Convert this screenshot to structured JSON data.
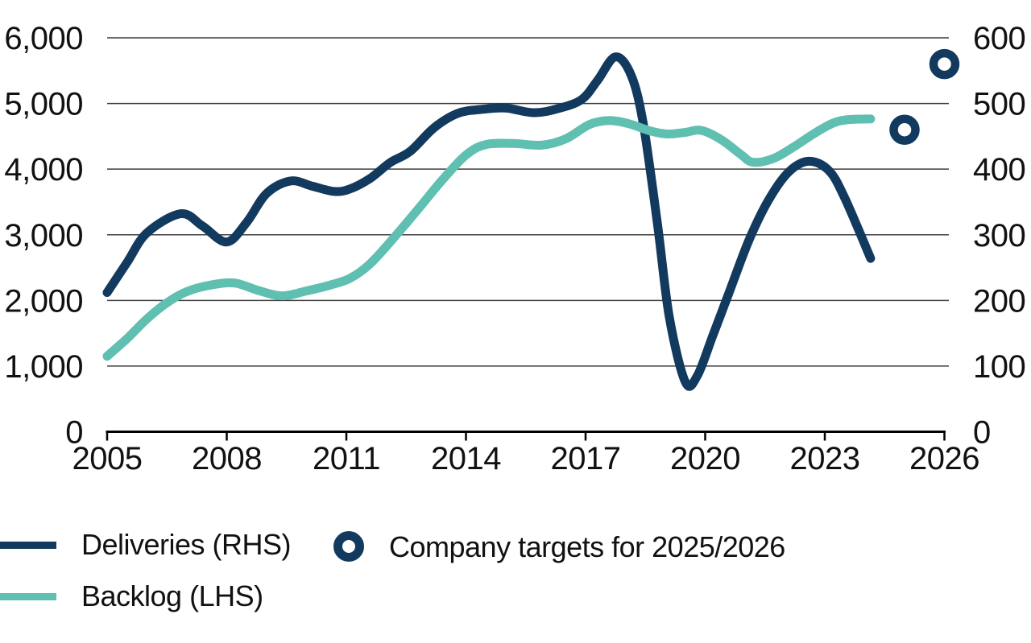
{
  "colors": {
    "navy": "#123A5F",
    "teal": "#5FBFB1",
    "grid": "#3d3d3d",
    "axis": "#000000",
    "text": "#111111"
  },
  "legend": {
    "deliveries_label": "Deliveries (RHS)",
    "backlog_label": "Backlog (LHS)",
    "targets_label": "Company targets for 2025/2026"
  },
  "chart_data": {
    "type": "line",
    "title": "",
    "grid": "horizontal",
    "legend_position": "bottom-left",
    "x_axis": {
      "range": [
        2005,
        2026
      ],
      "tick_values": [
        2005,
        2008,
        2011,
        2014,
        2017,
        2020,
        2023,
        2026
      ],
      "tick_labels": [
        "2005",
        "2008",
        "2011",
        "2014",
        "2017",
        "2020",
        "2023",
        "2026"
      ]
    },
    "left_axis": {
      "range": [
        0,
        6000
      ],
      "tick_values": [
        6000,
        5000,
        4000,
        3000,
        2000,
        1000,
        0
      ],
      "tick_labels": [
        "6,000",
        "5,000",
        "4,000",
        "3,000",
        "2,000",
        "1,000",
        "0"
      ],
      "applies_to": "Backlog (LHS)"
    },
    "right_axis": {
      "range": [
        0,
        600
      ],
      "tick_values": [
        600,
        500,
        400,
        300,
        200,
        100,
        0
      ],
      "tick_labels": [
        "600",
        "500",
        "400",
        "300",
        "200",
        "100",
        "0"
      ],
      "applies_to": "Deliveries (RHS)"
    },
    "series": [
      {
        "name": "Deliveries (RHS)",
        "axis": "right",
        "color_key": "navy",
        "points": [
          [
            2005,
            212
          ],
          [
            2005.5,
            258
          ],
          [
            2006,
            303
          ],
          [
            2006.85,
            332
          ],
          [
            2007.4,
            313
          ],
          [
            2008,
            289
          ],
          [
            2008.5,
            319
          ],
          [
            2009,
            363
          ],
          [
            2009.6,
            382
          ],
          [
            2010.15,
            374
          ],
          [
            2010.7,
            366
          ],
          [
            2011.1,
            370
          ],
          [
            2011.6,
            386
          ],
          [
            2012.1,
            410
          ],
          [
            2012.6,
            427
          ],
          [
            2013.2,
            463
          ],
          [
            2013.8,
            485
          ],
          [
            2014.4,
            491
          ],
          [
            2015,
            493
          ],
          [
            2015.7,
            486
          ],
          [
            2016.3,
            492
          ],
          [
            2016.9,
            506
          ],
          [
            2017.3,
            535
          ],
          [
            2017.75,
            571
          ],
          [
            2018.15,
            542
          ],
          [
            2018.45,
            468
          ],
          [
            2018.8,
            318
          ],
          [
            2019.1,
            175
          ],
          [
            2019.5,
            76
          ],
          [
            2019.8,
            85
          ],
          [
            2020.2,
            148
          ],
          [
            2020.6,
            212
          ],
          [
            2021.1,
            292
          ],
          [
            2021.6,
            354
          ],
          [
            2022.1,
            396
          ],
          [
            2022.6,
            412
          ],
          [
            2023.1,
            398
          ],
          [
            2023.5,
            356
          ],
          [
            2024.15,
            264
          ]
        ]
      },
      {
        "name": "Backlog (LHS)",
        "axis": "left",
        "color_key": "teal",
        "points": [
          [
            2005,
            1150
          ],
          [
            2005.5,
            1420
          ],
          [
            2006,
            1720
          ],
          [
            2006.5,
            1965
          ],
          [
            2007,
            2135
          ],
          [
            2007.6,
            2235
          ],
          [
            2008.2,
            2265
          ],
          [
            2008.8,
            2150
          ],
          [
            2009.4,
            2070
          ],
          [
            2010,
            2145
          ],
          [
            2010.6,
            2235
          ],
          [
            2011.1,
            2340
          ],
          [
            2011.6,
            2560
          ],
          [
            2012.2,
            2960
          ],
          [
            2012.8,
            3390
          ],
          [
            2013.4,
            3830
          ],
          [
            2014,
            4215
          ],
          [
            2014.5,
            4375
          ],
          [
            2015.2,
            4390
          ],
          [
            2015.9,
            4365
          ],
          [
            2016.5,
            4460
          ],
          [
            2017.1,
            4680
          ],
          [
            2017.6,
            4740
          ],
          [
            2018.1,
            4690
          ],
          [
            2018.6,
            4585
          ],
          [
            2019.05,
            4535
          ],
          [
            2019.5,
            4560
          ],
          [
            2019.9,
            4590
          ],
          [
            2020.4,
            4450
          ],
          [
            2020.9,
            4220
          ],
          [
            2021.2,
            4105
          ],
          [
            2021.7,
            4160
          ],
          [
            2022.2,
            4330
          ],
          [
            2022.7,
            4530
          ],
          [
            2023.2,
            4700
          ],
          [
            2023.6,
            4755
          ],
          [
            2024.15,
            4765
          ]
        ]
      }
    ],
    "markers": {
      "name": "Company targets for 2025/2026",
      "axis": "right",
      "style": "open-circle",
      "color_key": "navy",
      "points": [
        [
          2025,
          460
        ],
        [
          2026,
          560
        ]
      ]
    }
  }
}
